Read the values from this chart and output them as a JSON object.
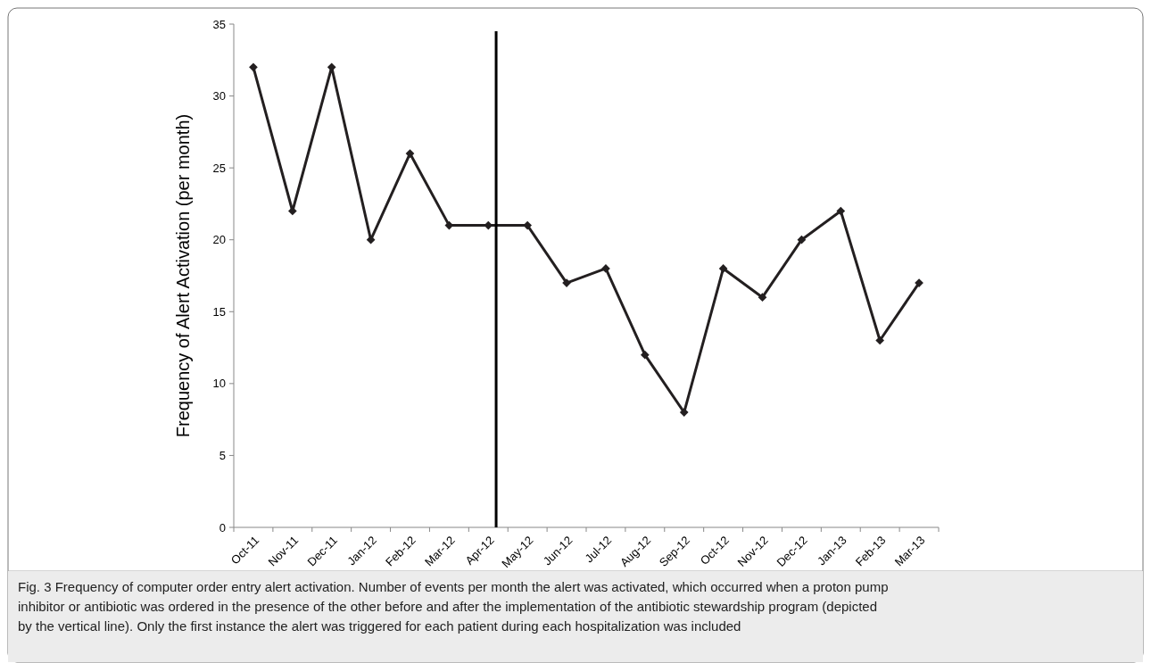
{
  "chart_data": {
    "type": "line",
    "ylabel": "Frequency of Alert Activation (per month)",
    "categories": [
      "Oct-11",
      "Nov-11",
      "Dec-11",
      "Jan-12",
      "Feb-12",
      "Mar-12",
      "Apr-12",
      "May-12",
      "Jun-12",
      "Jul-12",
      "Aug-12",
      "Sep-12",
      "Oct-12",
      "Nov-12",
      "Dec-12",
      "Jan-13",
      "Feb-13",
      "Mar-13"
    ],
    "series": [
      {
        "color": "#231f20",
        "values": [
          32,
          22,
          32,
          20,
          26,
          21,
          21,
          21,
          17,
          18,
          12,
          8,
          18,
          16,
          20,
          22,
          13,
          17
        ]
      }
    ],
    "ylim": [
      0,
      35
    ],
    "yticks": [
      0,
      5,
      10,
      15,
      20,
      25,
      30,
      35
    ],
    "grid": false,
    "marker": "diamond",
    "line_style": "solid",
    "ref_lines": [
      {
        "axis": "x",
        "value": "Apr-12",
        "color": "#000000"
      }
    ],
    "annotations": [
      "Fig. 3 Frequency of computer order entry alert activation. Number of events per month the alert was activated, which occurred when a proton pump inhibitor or antibiotic was ordered in the presence of the other before and after the implementation of the antibiotic stewardship program (depicted by the vertical line). Only the first instance the alert was triggered for each patient during each hospitalization was included"
    ]
  }
}
